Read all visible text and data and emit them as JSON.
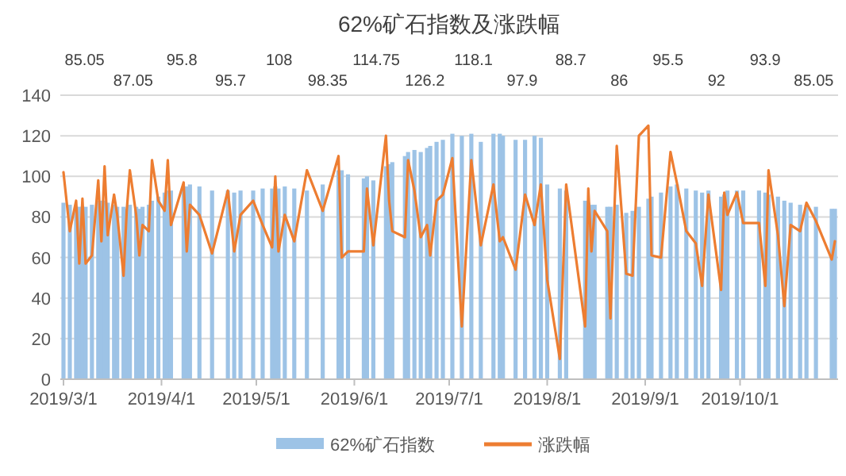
{
  "chart_data": {
    "type": "bar",
    "title": "62%矿石指数及涨跌幅",
    "x": [
      "2019-03-01",
      "2019-03-03",
      "2019-03-05",
      "2019-03-06",
      "2019-03-07",
      "2019-03-08",
      "2019-03-10",
      "2019-03-12",
      "2019-03-13",
      "2019-03-14",
      "2019-03-15",
      "2019-03-17",
      "2019-03-18",
      "2019-03-20",
      "2019-03-21",
      "2019-03-22",
      "2019-03-24",
      "2019-03-25",
      "2019-03-26",
      "2019-03-28",
      "2019-03-29",
      "2019-03-31",
      "2019-04-02",
      "2019-04-03",
      "2019-04-04",
      "2019-04-08",
      "2019-04-09",
      "2019-04-10",
      "2019-04-13",
      "2019-04-17",
      "2019-04-22",
      "2019-04-24",
      "2019-04-26",
      "2019-04-30",
      "2019-05-03",
      "2019-05-06",
      "2019-05-07",
      "2019-05-08",
      "2019-05-10",
      "2019-05-13",
      "2019-05-17",
      "2019-05-22",
      "2019-05-27",
      "2019-05-28",
      "2019-05-30",
      "2019-06-04",
      "2019-06-05",
      "2019-06-07",
      "2019-06-11",
      "2019-06-12",
      "2019-06-13",
      "2019-06-17",
      "2019-06-18",
      "2019-06-20",
      "2019-06-22",
      "2019-06-24",
      "2019-06-25",
      "2019-06-27",
      "2019-06-29",
      "2019-07-02",
      "2019-07-05",
      "2019-07-08",
      "2019-07-11",
      "2019-07-15",
      "2019-07-17",
      "2019-07-18",
      "2019-07-22",
      "2019-07-25",
      "2019-07-28",
      "2019-07-30",
      "2019-08-01",
      "2019-08-05",
      "2019-08-07",
      "2019-08-13",
      "2019-08-14",
      "2019-08-15",
      "2019-08-16",
      "2019-08-20",
      "2019-08-21",
      "2019-08-23",
      "2019-08-26",
      "2019-08-28",
      "2019-08-30",
      "2019-09-02",
      "2019-09-03",
      "2019-09-06",
      "2019-09-09",
      "2019-09-11",
      "2019-09-14",
      "2019-09-17",
      "2019-09-19",
      "2019-09-21",
      "2019-09-25",
      "2019-09-26",
      "2019-09-27",
      "2019-09-30",
      "2019-10-02",
      "2019-10-07",
      "2019-10-09",
      "2019-10-10",
      "2019-10-13",
      "2019-10-15",
      "2019-10-17",
      "2019-10-20",
      "2019-10-22",
      "2019-10-25",
      "2019-10-30",
      "2019-10-31"
    ],
    "series": [
      {
        "name": "62%矿石指数",
        "type": "bar",
        "color": "#9dc3e6",
        "values": [
          87,
          86,
          85,
          85,
          85,
          85,
          86,
          88,
          88,
          88,
          87,
          86,
          85,
          85,
          84,
          86,
          85,
          84,
          85,
          86,
          88,
          90,
          92,
          93,
          93,
          95,
          95,
          96,
          95,
          93,
          93,
          92,
          93,
          93,
          94,
          94,
          95,
          94,
          95,
          94,
          93,
          96,
          103,
          103,
          101,
          99,
          100,
          98,
          105,
          106,
          107,
          110,
          112,
          113,
          112,
          114,
          115,
          117,
          118,
          121,
          120,
          121,
          117,
          121,
          121,
          120,
          118,
          118,
          120,
          119,
          96,
          94,
          93,
          88,
          87,
          86,
          86,
          85,
          85,
          86,
          82,
          83,
          85,
          89,
          90,
          92,
          95,
          96,
          94,
          93,
          92,
          93,
          90,
          91,
          93,
          93,
          93,
          93,
          92,
          91,
          90,
          88,
          87,
          86,
          86,
          85,
          84,
          84
        ]
      },
      {
        "name": "涨跌幅",
        "type": "line",
        "color": "#ed7d31",
        "values": [
          102,
          73,
          88,
          57,
          89,
          57,
          61,
          98,
          68,
          105,
          71,
          91,
          81,
          51,
          83,
          103,
          81,
          61,
          76,
          73,
          108,
          88,
          83,
          108,
          76,
          97,
          63,
          86,
          81,
          62,
          93,
          63,
          81,
          88,
          76,
          65,
          100,
          63,
          81,
          68,
          103,
          83,
          110,
          60,
          63,
          63,
          94,
          66,
          120,
          88,
          73,
          70,
          108,
          93,
          70,
          76,
          61,
          88,
          91,
          109,
          26,
          108,
          66,
          96,
          68,
          70,
          54,
          91,
          76,
          96,
          49,
          10,
          96,
          26,
          94,
          63,
          83,
          73,
          30,
          115,
          52,
          51,
          120,
          125,
          61,
          60,
          112,
          97,
          73,
          67,
          46,
          91,
          44,
          92,
          81,
          92,
          77,
          77,
          46,
          103,
          71,
          36,
          76,
          73,
          87,
          78,
          59,
          68
        ]
      }
    ],
    "xlim": [
      "2019-02-28",
      "2019-11-01"
    ],
    "xticks": [
      {
        "value": "2019-03-01",
        "label": "2019/3/1"
      },
      {
        "value": "2019-04-01",
        "label": "2019/4/1"
      },
      {
        "value": "2019-05-01",
        "label": "2019/5/1"
      },
      {
        "value": "2019-06-01",
        "label": "2019/6/1"
      },
      {
        "value": "2019-07-01",
        "label": "2019/7/1"
      },
      {
        "value": "2019-08-01",
        "label": "2019/8/1"
      },
      {
        "value": "2019-09-01",
        "label": "2019/9/1"
      },
      {
        "value": "2019-10-01",
        "label": "2019/10/1"
      }
    ],
    "ylim": [
      0,
      140
    ],
    "yticks": [
      0,
      20,
      40,
      60,
      80,
      100,
      120,
      140
    ],
    "grid": "y",
    "legend": "bottom",
    "annotations": [
      "85.05",
      "87.05",
      "95.8",
      "95.7",
      "108",
      "98.35",
      "114.75",
      "126.2",
      "118.1",
      "97.9",
      "88.7",
      "86",
      "95.5",
      "92",
      "93.9",
      "85.05"
    ]
  }
}
